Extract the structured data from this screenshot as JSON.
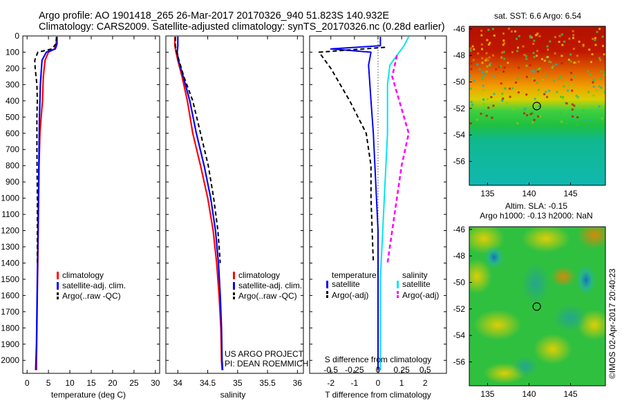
{
  "header": {
    "line1": "Argo profile: AO 1901418_265 26-Mar-2017 20170326_940 51.823S 140.932E",
    "line2": "Climatology: CARS2009. Satellite-adjusted climatology: synTS_20170326.nc (0.28d earlier)"
  },
  "colors": {
    "climatology": "#ff0000",
    "satellite": "#0000ff",
    "argo": "#000000",
    "s_satellite": "#00e5ee",
    "s_argo": "#ff00ff"
  },
  "chart_data": [
    {
      "type": "line",
      "title": "",
      "xlabel": "temperature (deg C)",
      "ylabel": "",
      "xlim": [
        -1,
        31
      ],
      "ylim": [
        2080,
        0
      ],
      "xticks": [
        "0",
        "5",
        "10",
        "15",
        "20",
        "25",
        "30"
      ],
      "yticks": [
        "0",
        "100",
        "200",
        "300",
        "400",
        "500",
        "600",
        "700",
        "800",
        "900",
        "1000",
        "1100",
        "1200",
        "1300",
        "1400",
        "1500",
        "1600",
        "1700",
        "1800",
        "1900",
        "2000"
      ],
      "legend": [
        "climatology",
        "satellite-adj. clim.",
        "Argo(..raw -QC)"
      ],
      "legend_position": "lower-right",
      "series": [
        {
          "name": "climatology",
          "style": "solid",
          "points": [
            [
              6.9,
              5
            ],
            [
              6.8,
              50
            ],
            [
              6.4,
              80
            ],
            [
              5.0,
              100
            ],
            [
              4.2,
              150
            ],
            [
              3.8,
              250
            ],
            [
              3.6,
              400
            ],
            [
              3.3,
              500
            ],
            [
              3.0,
              600
            ],
            [
              2.8,
              800
            ],
            [
              2.7,
              1000
            ],
            [
              2.6,
              1200
            ],
            [
              2.5,
              1400
            ],
            [
              2.4,
              1600
            ],
            [
              2.3,
              1800
            ],
            [
              2.2,
              2000
            ],
            [
              2.2,
              2060
            ]
          ]
        },
        {
          "name": "satellite-adj. clim.",
          "style": "solid",
          "points": [
            [
              7.0,
              5
            ],
            [
              7.0,
              50
            ],
            [
              6.6,
              80
            ],
            [
              4.5,
              100
            ],
            [
              3.5,
              150
            ],
            [
              3.1,
              300
            ],
            [
              2.9,
              500
            ],
            [
              2.8,
              700
            ],
            [
              2.7,
              900
            ],
            [
              2.6,
              1100
            ],
            [
              2.5,
              1300
            ],
            [
              2.4,
              1500
            ],
            [
              2.3,
              1700
            ],
            [
              2.2,
              1900
            ],
            [
              2.0,
              2060
            ]
          ]
        },
        {
          "name": "Argo(..raw -QC)",
          "style": "dashed",
          "points": [
            [
              6.9,
              5
            ],
            [
              6.7,
              50
            ],
            [
              5.8,
              80
            ],
            [
              2.5,
              100
            ],
            [
              1.8,
              150
            ],
            [
              1.9,
              200
            ],
            [
              2.3,
              300
            ],
            [
              2.4,
              400
            ],
            [
              2.3,
              500
            ],
            [
              2.3,
              700
            ],
            [
              2.4,
              1000
            ],
            [
              2.4,
              1400
            ]
          ]
        }
      ]
    },
    {
      "type": "line",
      "title": "",
      "xlabel": "salinity",
      "ylabel": "",
      "xlim": [
        33.8,
        36.1
      ],
      "ylim": [
        2080,
        0
      ],
      "xticks": [
        "34",
        "34.5",
        "35",
        "35.5",
        "36"
      ],
      "legend": [
        "climatology",
        "satellite-adj. clim.",
        "Argo(..raw -QC)"
      ],
      "legend_position": "lower-right",
      "annotations": [
        "US ARGO PROJECT",
        "PI: DEAN ROEMMICH"
      ],
      "series": [
        {
          "name": "climatology",
          "style": "solid",
          "points": [
            [
              33.95,
              5
            ],
            [
              33.95,
              60
            ],
            [
              33.97,
              100
            ],
            [
              34.0,
              150
            ],
            [
              34.07,
              250
            ],
            [
              34.16,
              400
            ],
            [
              34.25,
              600
            ],
            [
              34.38,
              800
            ],
            [
              34.5,
              1000
            ],
            [
              34.59,
              1200
            ],
            [
              34.65,
              1400
            ],
            [
              34.69,
              1600
            ],
            [
              34.72,
              1800
            ],
            [
              34.73,
              2000
            ],
            [
              34.74,
              2060
            ]
          ]
        },
        {
          "name": "satellite-adj. clim.",
          "style": "solid",
          "points": [
            [
              34.0,
              5
            ],
            [
              34.0,
              60
            ],
            [
              33.99,
              100
            ],
            [
              34.01,
              150
            ],
            [
              34.09,
              250
            ],
            [
              34.2,
              400
            ],
            [
              34.31,
              600
            ],
            [
              34.44,
              800
            ],
            [
              34.55,
              1000
            ],
            [
              34.63,
              1200
            ],
            [
              34.68,
              1400
            ],
            [
              34.71,
              1600
            ],
            [
              34.73,
              1800
            ],
            [
              34.74,
              2000
            ],
            [
              34.75,
              2060
            ]
          ]
        },
        {
          "name": "Argo(..raw -QC)",
          "style": "dashed",
          "points": [
            [
              33.96,
              5
            ],
            [
              33.96,
              60
            ],
            [
              33.98,
              100
            ],
            [
              34.02,
              150
            ],
            [
              34.1,
              250
            ],
            [
              34.25,
              400
            ],
            [
              34.38,
              600
            ],
            [
              34.51,
              800
            ],
            [
              34.6,
              1000
            ],
            [
              34.67,
              1200
            ],
            [
              34.71,
              1400
            ]
          ]
        }
      ]
    },
    {
      "type": "line",
      "title": "",
      "xlabel": "T difference from climatology",
      "xlabel2": "S difference from climatology",
      "ylabel": "",
      "xlim": [
        -2.9,
        2.9
      ],
      "ylim": [
        2080,
        0
      ],
      "xticks": [
        "-2",
        "-1",
        "0",
        "1",
        "2"
      ],
      "xticks2": [
        "-0.5",
        "-0.25",
        "0",
        "0.25",
        "0.5"
      ],
      "legend": [
        "temperature",
        "satellite",
        "Argo(-adj)",
        "salinity",
        "satellite",
        "Argo(-adj)"
      ],
      "legend_position": "lower-center",
      "series": [
        {
          "name": "temperature satellite",
          "style": "solid",
          "points": [
            [
              0.1,
              5
            ],
            [
              0.1,
              60
            ],
            [
              -2.0,
              80
            ],
            [
              -0.3,
              100
            ],
            [
              -0.4,
              180
            ],
            [
              -0.3,
              400
            ],
            [
              -0.2,
              600
            ],
            [
              -0.1,
              900
            ],
            [
              0,
              1200
            ],
            [
              0,
              2060
            ]
          ]
        },
        {
          "name": "temperature Argo(-adj)",
          "style": "dashed",
          "points": [
            [
              0.3,
              70
            ],
            [
              -2.5,
              100
            ],
            [
              -2.0,
              200
            ],
            [
              -1.2,
              400
            ],
            [
              -0.5,
              600
            ],
            [
              -0.3,
              800
            ],
            [
              -0.3,
              1000
            ],
            [
              -0.2,
              1400
            ]
          ]
        },
        {
          "name": "salinity satellite",
          "style": "solid",
          "points": [
            [
              1.3,
              5
            ],
            [
              1.1,
              60
            ],
            [
              0.9,
              100
            ],
            [
              0.5,
              180
            ],
            [
              0.4,
              300
            ],
            [
              0.4,
              600
            ],
            [
              0.3,
              900
            ],
            [
              0.2,
              1200
            ],
            [
              0.1,
              1500
            ],
            [
              0.1,
              2060
            ]
          ]
        },
        {
          "name": "salinity Argo(-adj)",
          "style": "dashed",
          "points": [
            [
              0.8,
              120
            ],
            [
              0.6,
              250
            ],
            [
              0.9,
              400
            ],
            [
              1.3,
              600
            ],
            [
              1.0,
              800
            ],
            [
              0.8,
              1000
            ],
            [
              0.6,
              1200
            ],
            [
              0.4,
              1400
            ]
          ]
        }
      ]
    },
    {
      "type": "heatmap",
      "title": "sat. SST: 6.6 Argo: 6.54",
      "xticks": [
        "135",
        "140",
        "145"
      ],
      "yticks": [
        "-46",
        "-48",
        "-50",
        "-52",
        "-54",
        "-56"
      ],
      "xlim": [
        132.8,
        149.2
      ],
      "ylim": [
        -57.8,
        -45.8
      ],
      "marker": [
        140.93,
        -51.82
      ]
    },
    {
      "type": "heatmap",
      "title": "Altim. SLA: -0.15",
      "subtitle": "Argo h1000: -0.13 h2000: NaN",
      "xticks": [
        "135",
        "140",
        "145"
      ],
      "yticks": [
        "-46",
        "-48",
        "-50",
        "-52",
        "-54",
        "-56"
      ],
      "xlim": [
        132.8,
        149.2
      ],
      "ylim": [
        -57.8,
        -45.8
      ],
      "marker": [
        140.93,
        -51.82
      ]
    }
  ],
  "credit": "©IMOS 02-Apr-2017 20:40:23"
}
